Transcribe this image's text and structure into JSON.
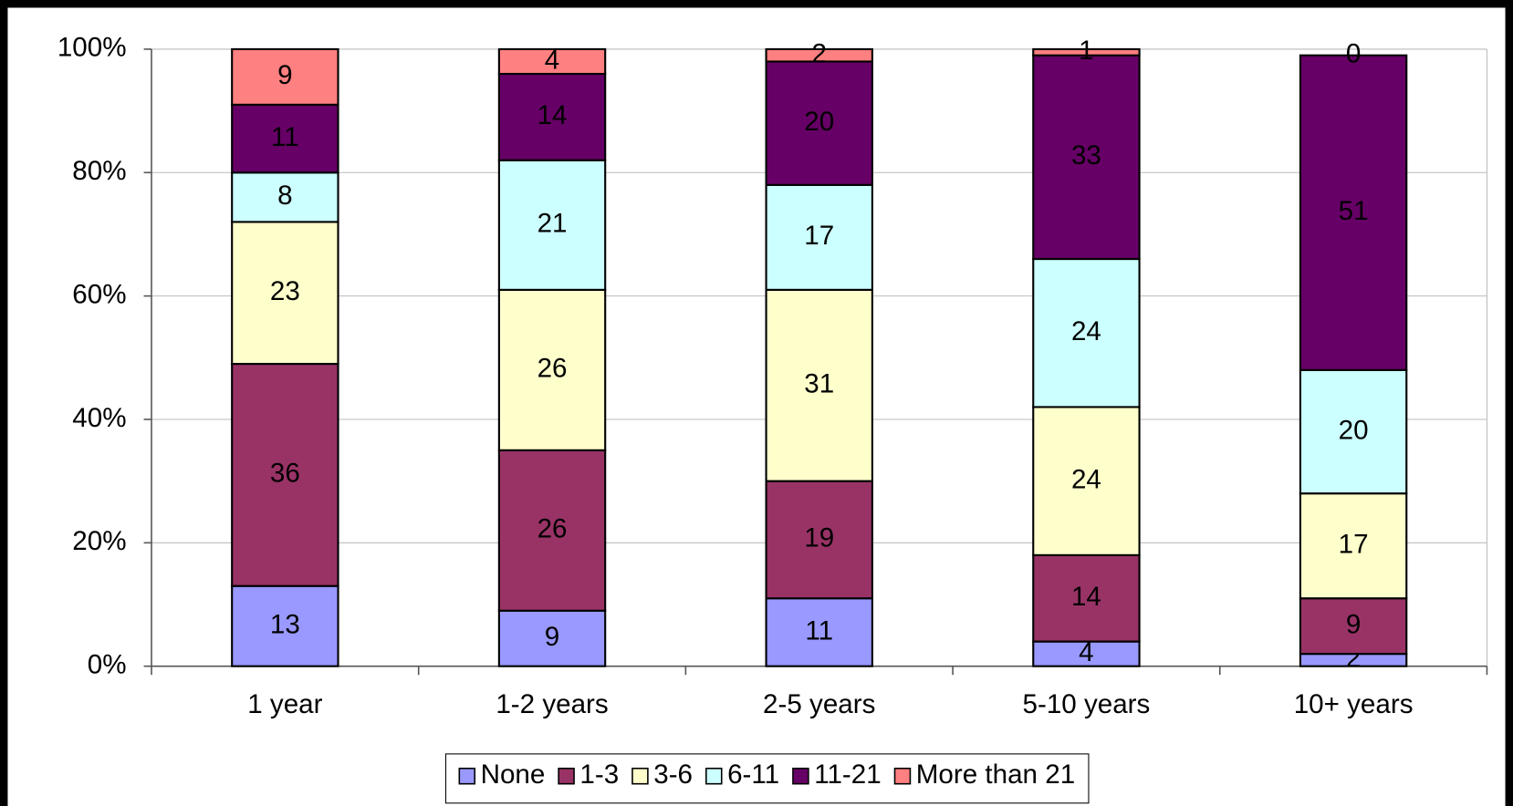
{
  "chart_data": {
    "type": "bar",
    "stacked": true,
    "categories": [
      "1 year",
      "1-2 years",
      "2-5 years",
      "5-10 years",
      "10+ years"
    ],
    "series": [
      {
        "name": "None",
        "color": "#9999ff",
        "values": [
          13,
          9,
          11,
          4,
          2
        ]
      },
      {
        "name": "1-3",
        "color": "#993366",
        "values": [
          36,
          26,
          19,
          14,
          9
        ]
      },
      {
        "name": "3-6",
        "color": "#ffffcc",
        "values": [
          23,
          26,
          31,
          24,
          17
        ]
      },
      {
        "name": "6-11",
        "color": "#ccffff",
        "values": [
          8,
          21,
          17,
          24,
          20
        ]
      },
      {
        "name": "11-21",
        "color": "#660066",
        "values": [
          11,
          14,
          20,
          33,
          51
        ]
      },
      {
        "name": "More than 21",
        "color": "#ff8080",
        "values": [
          9,
          4,
          2,
          1,
          0
        ]
      }
    ],
    "ylim": [
      0,
      100
    ],
    "yticks": [
      {
        "value": 0,
        "label": "0%"
      },
      {
        "value": 20,
        "label": "20%"
      },
      {
        "value": 40,
        "label": "40%"
      },
      {
        "value": 60,
        "label": "60%"
      },
      {
        "value": 80,
        "label": "80%"
      },
      {
        "value": 100,
        "label": "100%"
      }
    ],
    "grid": true,
    "legend": "bottom"
  }
}
